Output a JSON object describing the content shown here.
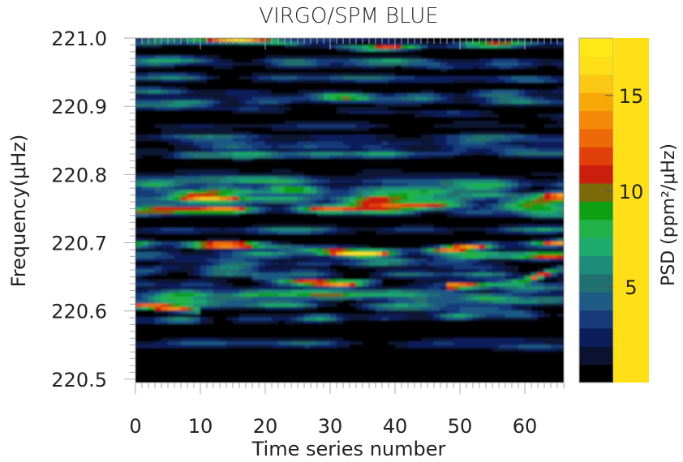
{
  "chart_data": {
    "type": "heatmap",
    "title": "VIRGO/SPM BLUE",
    "xlabel": "Time series number",
    "ylabel": "Frequency(μHz)",
    "colorbar_label": "PSD (ppm²/μHz)",
    "x_range": [
      0,
      66
    ],
    "y_range": [
      220.495,
      221.0
    ],
    "z_range": [
      0,
      18
    ],
    "x_ticks": [
      0,
      10,
      20,
      30,
      40,
      50,
      60
    ],
    "x_tick_labels": [
      "0",
      "10",
      "20",
      "30",
      "40",
      "50",
      "60"
    ],
    "y_ticks": [
      220.5,
      220.6,
      220.7,
      220.8,
      220.9,
      221.0
    ],
    "y_tick_labels": [
      "220.5",
      "220.6",
      "220.7",
      "220.8",
      "220.9",
      "221.0"
    ],
    "colorbar_ticks": [
      5,
      10,
      15
    ],
    "colorbar_tick_labels": [
      "5",
      "10",
      "15"
    ],
    "colormap": [
      "#000000",
      "#0a1230",
      "#0c1e5a",
      "#163a7a",
      "#1f5a85",
      "#207070",
      "#1e8c7a",
      "#1eaa6a",
      "#22b24a",
      "#0ea012",
      "#7a6a08",
      "#cc1e0c",
      "#e2400a",
      "#ee6a08",
      "#f48a08",
      "#f8a808",
      "#fcc816",
      "#ffe018",
      "#ffe818"
    ],
    "features": [
      {
        "desc": "strong continuous ridge",
        "x": [
          0,
          10,
          20,
          28,
          35,
          45,
          55,
          66
        ],
        "y": [
          220.698,
          220.697,
          220.697,
          220.688,
          220.684,
          220.689,
          220.696,
          220.7
        ],
        "peak_psd": 16
      },
      {
        "desc": "secondary ridge",
        "x": [
          18,
          25,
          32,
          38
        ],
        "y": [
          220.65,
          220.643,
          220.64,
          220.644
        ],
        "peak_psd": 14
      },
      {
        "desc": "secondary ridge",
        "x": [
          48,
          54,
          60,
          66
        ],
        "y": [
          220.637,
          220.638,
          220.645,
          220.663
        ],
        "peak_psd": 14
      },
      {
        "desc": "top ridge",
        "x": [
          8,
          20,
          35,
          50,
          66
        ],
        "y": [
          220.999,
          220.996,
          220.985,
          220.99,
          220.992
        ],
        "peak_psd": 13
      },
      {
        "desc": "lower patch",
        "x": [
          0,
          4,
          10
        ],
        "y": [
          220.608,
          220.606,
          220.6
        ],
        "peak_psd": 12
      }
    ]
  }
}
